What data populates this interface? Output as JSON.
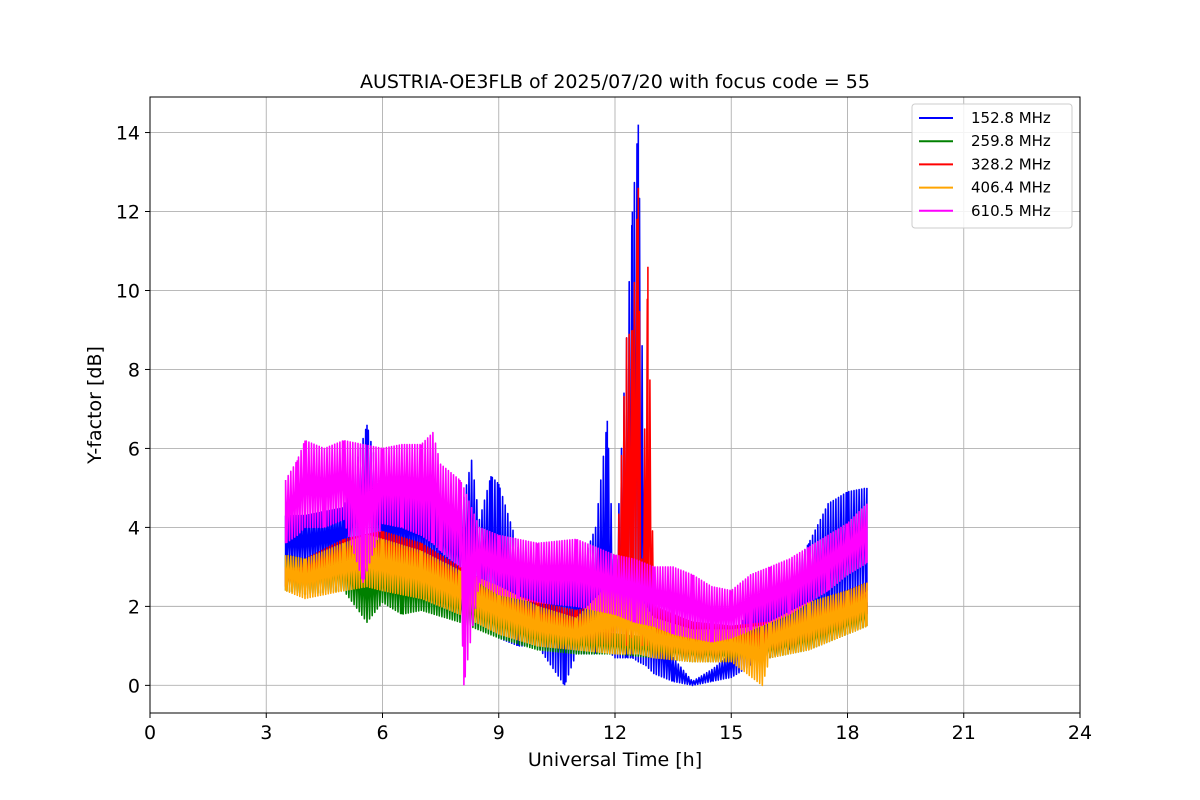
{
  "chart_data": {
    "type": "line",
    "title": "AUSTRIA-OE3FLB of 2025/07/20 with focus code = 55",
    "xlabel": "Universal Time [h]",
    "ylabel": "Y-factor [dB]",
    "xlim": [
      0,
      24
    ],
    "ylim": [
      -0.7,
      14.9
    ],
    "xticks": [
      0,
      3,
      6,
      9,
      12,
      15,
      18,
      21,
      24
    ],
    "yticks": [
      0,
      2,
      4,
      6,
      8,
      10,
      12,
      14
    ],
    "grid": true,
    "legend_position": "top-right",
    "colors": {
      "152.8 MHz": "#0000ff",
      "259.8 MHz": "#008000",
      "328.2 MHz": "#ff0000",
      "406.4 MHz": "#ffa500",
      "610.5 MHz": "#ff00ff"
    },
    "series": [
      {
        "name": "152.8 MHz",
        "x": [
          3.5,
          4.0,
          5.0,
          5.6,
          6.0,
          7.0,
          7.5,
          8.0,
          8.3,
          8.5,
          8.8,
          9.0,
          9.5,
          10.0,
          10.7,
          11.0,
          11.5,
          11.8,
          12.0,
          12.3,
          12.45,
          12.6,
          12.8,
          13.0,
          13.5,
          14.0,
          14.5,
          15.0,
          15.5,
          16.0,
          16.5,
          17.0,
          17.5,
          18.0,
          18.5
        ],
        "y": [
          4.3,
          4.3,
          4.5,
          6.6,
          4.9,
          4.9,
          4.7,
          4.3,
          5.7,
          4.2,
          5.3,
          5.1,
          3.5,
          3.2,
          2.8,
          2.7,
          4.0,
          6.7,
          2.5,
          8.8,
          12.0,
          14.2,
          3.0,
          2.0,
          0.7,
          0.1,
          0.4,
          0.8,
          2.2,
          2.5,
          2.8,
          3.6,
          4.6,
          4.9,
          5.0
        ],
        "min": [
          3.0,
          3.0,
          3.2,
          3.3,
          3.3,
          3.1,
          2.9,
          2.6,
          2.3,
          2.0,
          1.6,
          1.2,
          1.0,
          1.0,
          0.0,
          0.8,
          0.8,
          0.9,
          0.7,
          0.7,
          0.7,
          0.6,
          0.5,
          0.3,
          0.1,
          0.0,
          0.1,
          0.2,
          0.5,
          0.7,
          0.9,
          1.2,
          1.6,
          2.0,
          2.4
        ]
      },
      {
        "name": "259.8 MHz",
        "x": [
          3.5,
          4.0,
          5.0,
          5.6,
          6.0,
          6.5,
          7.0,
          8.0,
          9.0,
          10.0,
          11.0,
          12.0,
          13.0,
          14.0,
          15.0,
          16.0,
          17.0,
          18.0,
          18.5
        ],
        "y": [
          3.3,
          3.2,
          3.3,
          3.1,
          3.1,
          3.0,
          2.8,
          2.5,
          2.0,
          1.6,
          1.4,
          1.3,
          1.2,
          1.1,
          1.0,
          1.2,
          1.5,
          1.9,
          2.1
        ],
        "min": [
          2.4,
          2.3,
          2.4,
          1.6,
          2.1,
          1.8,
          1.9,
          1.6,
          1.2,
          0.9,
          0.8,
          0.8,
          0.7,
          0.6,
          0.6,
          0.7,
          0.9,
          1.3,
          1.5
        ]
      },
      {
        "name": "328.2 MHz",
        "x": [
          3.5,
          4.0,
          5.0,
          6.0,
          7.0,
          8.0,
          9.0,
          10.0,
          11.0,
          12.0,
          12.3,
          12.45,
          12.6,
          12.7,
          12.85,
          13.0,
          14.0,
          15.0,
          16.0,
          17.0,
          18.0,
          18.5
        ],
        "y": [
          3.0,
          3.2,
          3.7,
          3.9,
          3.6,
          3.0,
          2.4,
          2.1,
          1.9,
          2.1,
          8.8,
          9.0,
          12.6,
          3.2,
          10.6,
          2.0,
          1.6,
          1.5,
          1.6,
          2.0,
          2.4,
          2.6
        ],
        "min": [
          2.5,
          2.6,
          2.9,
          3.1,
          2.8,
          2.3,
          1.7,
          1.3,
          1.1,
          1.0,
          1.0,
          1.2,
          1.3,
          1.0,
          1.0,
          0.8,
          0.7,
          0.7,
          0.8,
          1.1,
          1.5,
          1.8
        ]
      },
      {
        "name": "406.4 MHz",
        "x": [
          3.5,
          4.0,
          5.0,
          5.6,
          6.0,
          7.0,
          8.0,
          9.0,
          10.0,
          11.0,
          12.0,
          12.6,
          13.0,
          14.0,
          15.0,
          15.8,
          16.0,
          17.0,
          18.0,
          18.5
        ],
        "y": [
          3.3,
          3.2,
          3.6,
          3.8,
          3.7,
          3.4,
          2.9,
          2.5,
          2.0,
          1.7,
          2.7,
          2.3,
          1.7,
          1.4,
          1.4,
          1.5,
          1.6,
          2.1,
          2.4,
          2.6
        ],
        "min": [
          2.4,
          2.2,
          2.4,
          2.5,
          2.4,
          2.2,
          1.8,
          1.3,
          1.0,
          0.9,
          0.8,
          0.8,
          0.7,
          0.6,
          0.6,
          0.0,
          0.7,
          0.9,
          1.3,
          1.5
        ]
      },
      {
        "name": "610.5 MHz",
        "x": [
          3.5,
          3.8,
          4.0,
          4.5,
          5.0,
          5.5,
          6.0,
          6.5,
          7.0,
          7.3,
          7.5,
          8.0,
          8.1,
          8.5,
          9.0,
          9.5,
          10.0,
          11.0,
          12.0,
          12.5,
          13.0,
          13.5,
          14.0,
          14.5,
          15.0,
          15.5,
          16.0,
          16.5,
          17.0,
          17.5,
          18.0,
          18.5
        ],
        "y": [
          5.2,
          5.7,
          6.2,
          6.0,
          6.2,
          6.1,
          6.0,
          6.1,
          6.1,
          6.4,
          5.6,
          5.2,
          5.0,
          4.0,
          3.8,
          3.7,
          3.6,
          3.7,
          3.3,
          3.2,
          3.0,
          3.0,
          2.8,
          2.5,
          2.4,
          2.8,
          3.0,
          3.2,
          3.5,
          3.8,
          4.1,
          4.6
        ],
        "min": [
          3.6,
          3.8,
          4.0,
          4.0,
          4.2,
          2.6,
          4.1,
          4.0,
          3.8,
          3.6,
          3.4,
          3.0,
          0.0,
          2.6,
          2.3,
          2.2,
          2.1,
          2.0,
          1.8,
          1.6,
          1.5,
          1.3,
          1.2,
          1.1,
          1.2,
          1.4,
          1.6,
          1.8,
          2.1,
          2.4,
          2.8,
          3.1
        ]
      }
    ]
  }
}
